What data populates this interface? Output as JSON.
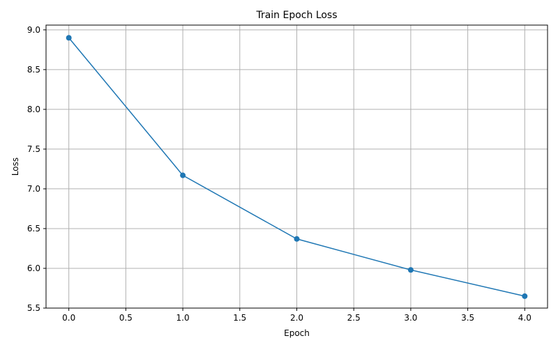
{
  "chart_data": {
    "type": "line",
    "title": "Train Epoch Loss",
    "xlabel": "Epoch",
    "ylabel": "Loss",
    "xlim": [
      -0.2,
      4.2
    ],
    "ylim": [
      5.5,
      9.06
    ],
    "xticks": [
      0.0,
      0.5,
      1.0,
      1.5,
      2.0,
      2.5,
      3.0,
      3.5,
      4.0
    ],
    "xtick_labels": [
      "0.0",
      "0.5",
      "1.0",
      "1.5",
      "2.0",
      "2.5",
      "3.0",
      "3.5",
      "4.0"
    ],
    "yticks": [
      5.5,
      6.0,
      6.5,
      7.0,
      7.5,
      8.0,
      8.5,
      9.0
    ],
    "ytick_labels": [
      "5.5",
      "6.0",
      "6.5",
      "7.0",
      "7.5",
      "8.0",
      "8.5",
      "9.0"
    ],
    "grid": true,
    "legend": false,
    "series": [
      {
        "color": "#1f77b4",
        "marker": "circle",
        "x": [
          0,
          1,
          2,
          3,
          4
        ],
        "y": [
          8.9,
          7.17,
          6.37,
          5.98,
          5.65
        ]
      }
    ]
  }
}
